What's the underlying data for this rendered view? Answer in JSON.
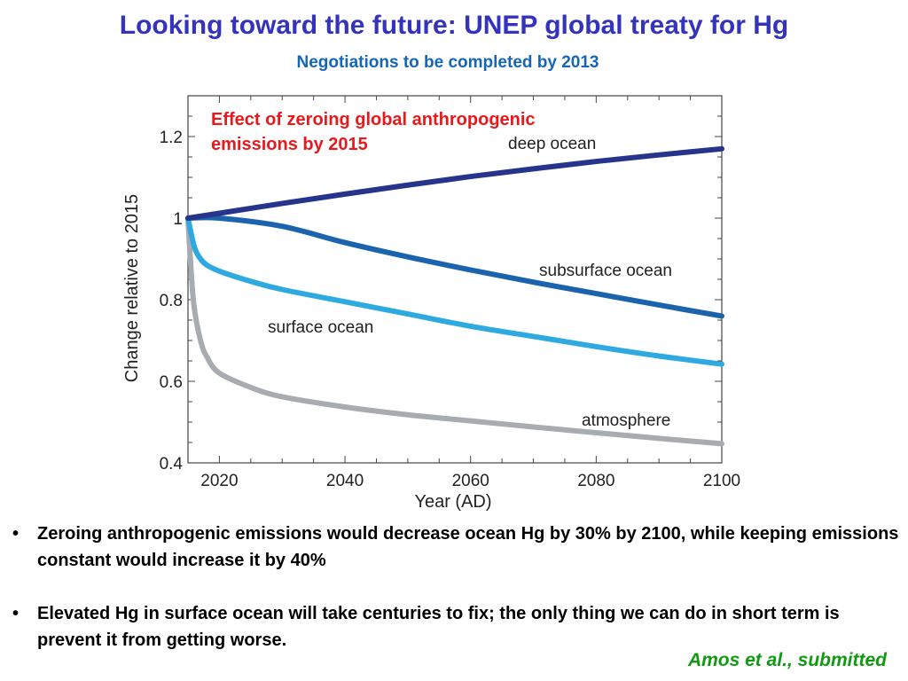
{
  "title": "Looking toward the future: UNEP global treaty for Hg",
  "subtitle": "Negotiations to be completed by 2013",
  "chart_data": {
    "type": "line",
    "annotation": [
      "Effect of zeroing global anthropogenic",
      "emissions by 2015"
    ],
    "annotation_color": "#e8191c",
    "xlabel": "Year (AD)",
    "ylabel": "Change relative to 2015",
    "xlim": [
      2015,
      2100
    ],
    "ylim": [
      0.4,
      1.3
    ],
    "xticks": [
      2020,
      2040,
      2060,
      2080,
      2100
    ],
    "yticks": [
      0.4,
      0.6,
      0.8,
      1,
      1.2
    ],
    "ytick_labels": [
      "0.4",
      "0.6",
      "0.8",
      "1",
      "1.2"
    ],
    "grid": false,
    "series": [
      {
        "name": "deep ocean",
        "color": "#26348c",
        "x": [
          2015,
          2020,
          2030,
          2040,
          2050,
          2060,
          2070,
          2080,
          2090,
          2100
        ],
        "y": [
          1.0,
          1.012,
          1.036,
          1.059,
          1.081,
          1.102,
          1.121,
          1.139,
          1.155,
          1.17
        ]
      },
      {
        "name": "subsurface ocean",
        "color": "#1c63ad",
        "x": [
          2015,
          2020,
          2030,
          2040,
          2050,
          2060,
          2070,
          2080,
          2090,
          2100
        ],
        "y": [
          1.0,
          1.0,
          0.98,
          0.94,
          0.905,
          0.873,
          0.843,
          0.815,
          0.787,
          0.76
        ]
      },
      {
        "name": "surface ocean",
        "color": "#2eaae1",
        "x": [
          2015,
          2016,
          2017,
          2018,
          2020,
          2025,
          2030,
          2040,
          2050,
          2060,
          2070,
          2080,
          2090,
          2100
        ],
        "y": [
          1.0,
          0.93,
          0.9,
          0.885,
          0.87,
          0.845,
          0.825,
          0.795,
          0.765,
          0.735,
          0.71,
          0.685,
          0.662,
          0.642
        ]
      },
      {
        "name": "atmosphere",
        "color": "#a8acb0",
        "x": [
          2015,
          2015.5,
          2016,
          2017,
          2018,
          2020,
          2025,
          2030,
          2040,
          2050,
          2060,
          2070,
          2080,
          2090,
          2100
        ],
        "y": [
          1.0,
          0.87,
          0.78,
          0.7,
          0.66,
          0.62,
          0.585,
          0.562,
          0.537,
          0.518,
          0.503,
          0.488,
          0.474,
          0.46,
          0.447
        ]
      }
    ]
  },
  "bullets": [
    "Zeroing anthropogenic emissions would decrease ocean Hg by 30% by 2100, while keeping emissions constant would increase it by 40%",
    "Elevated Hg in surface ocean will take centuries to fix; the only thing we can do in short term is prevent it from getting worse."
  ],
  "bullet_symbol": "•",
  "credit": "Amos et al., submitted"
}
